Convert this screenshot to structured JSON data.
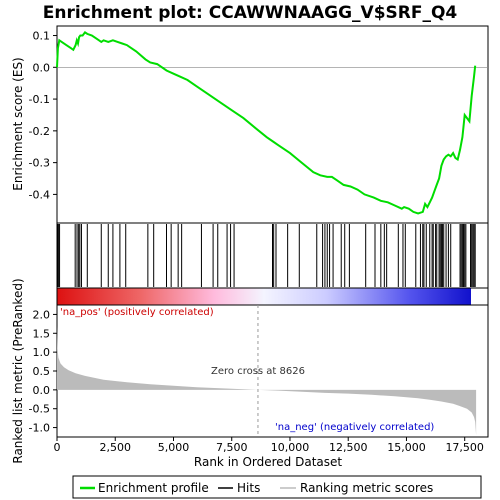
{
  "title": "Enrichment plot: CCAWWNAAGG_V$SRF_Q4",
  "colors": {
    "enrichment_line": "#00dd00",
    "hits": "#000000",
    "metric_fill": "#bbbbbb",
    "pos_text": "#cc0000",
    "neg_text": "#0000cc"
  },
  "chart_data": [
    {
      "type": "line",
      "name": "enrichment-score",
      "ylabel": "Enrichment score (ES)",
      "xlim": [
        0,
        18500
      ],
      "ylim": [
        -0.49,
        0.13
      ],
      "yticks": [
        0.1,
        0.0,
        -0.1,
        -0.2,
        -0.3,
        -0.4
      ],
      "ytick_labels": [
        "0.1",
        "0.0",
        "-0.1",
        "-0.2",
        "-0.3",
        "-0.4"
      ],
      "grid": false,
      "x": [
        0,
        40,
        100,
        200,
        400,
        600,
        700,
        800,
        850,
        900,
        950,
        1000,
        1100,
        1200,
        1300,
        1500,
        1700,
        1900,
        2000,
        2200,
        2400,
        2600,
        2800,
        3000,
        3400,
        3800,
        4000,
        4300,
        4700,
        5000,
        5300,
        5600,
        6000,
        6500,
        7000,
        7500,
        8000,
        8500,
        9000,
        9300,
        9500,
        10000,
        10500,
        11000,
        11300,
        11600,
        11800,
        12000,
        12300,
        12600,
        12900,
        13200,
        13600,
        13900,
        14200,
        14500,
        14800,
        14900,
        15100,
        15300,
        15500,
        15700,
        15800,
        15900,
        16000,
        16100,
        16200,
        16300,
        16400,
        16500,
        16600,
        16700,
        16800,
        16900,
        17000,
        17100,
        17200,
        17300,
        17400,
        17500,
        17600,
        17700,
        17800,
        17900,
        17950
      ],
      "y": [
        0.0,
        0.06,
        0.085,
        0.08,
        0.07,
        0.06,
        0.055,
        0.07,
        0.085,
        0.075,
        0.095,
        0.1,
        0.1,
        0.11,
        0.105,
        0.1,
        0.09,
        0.08,
        0.085,
        0.08,
        0.085,
        0.08,
        0.075,
        0.07,
        0.05,
        0.025,
        0.015,
        0.01,
        -0.01,
        -0.02,
        -0.03,
        -0.04,
        -0.06,
        -0.085,
        -0.11,
        -0.135,
        -0.16,
        -0.19,
        -0.22,
        -0.235,
        -0.245,
        -0.27,
        -0.3,
        -0.33,
        -0.34,
        -0.345,
        -0.345,
        -0.355,
        -0.37,
        -0.375,
        -0.385,
        -0.4,
        -0.41,
        -0.42,
        -0.425,
        -0.435,
        -0.445,
        -0.44,
        -0.445,
        -0.455,
        -0.46,
        -0.455,
        -0.43,
        -0.44,
        -0.425,
        -0.41,
        -0.39,
        -0.37,
        -0.35,
        -0.31,
        -0.29,
        -0.28,
        -0.275,
        -0.28,
        -0.27,
        -0.285,
        -0.29,
        -0.26,
        -0.22,
        -0.15,
        -0.16,
        -0.17,
        -0.09,
        -0.03,
        0.005
      ]
    },
    {
      "type": "hits",
      "name": "gene-set-hits",
      "x": [
        30,
        60,
        110,
        780,
        860,
        930,
        980,
        1050,
        1300,
        1900,
        2200,
        2400,
        2700,
        2950,
        3900,
        4150,
        4700,
        4900,
        5200,
        5350,
        6200,
        6700,
        6900,
        7300,
        7450,
        7600,
        9250,
        9300,
        9400,
        9900,
        10400,
        11150,
        11400,
        11500,
        11600,
        11700,
        11850,
        12200,
        12350,
        12550,
        13250,
        13650,
        13900,
        14050,
        14150,
        14650,
        14850,
        14950,
        15400,
        15600,
        15700,
        15750,
        15850,
        16000,
        16100,
        16150,
        16250,
        16300,
        16400,
        16450,
        16500,
        16550,
        16600,
        16700,
        16800,
        16900,
        17300,
        17350,
        17400,
        17450,
        17500,
        17550,
        17750,
        17800,
        17850,
        17900,
        17950
      ]
    },
    {
      "type": "area",
      "name": "ranked-list-metric",
      "ylabel": "Ranked list metric (PreRanked)",
      "xlabel": "Rank in Ordered Dataset",
      "xlim": [
        0,
        18500
      ],
      "ylim": [
        -1.25,
        2.25
      ],
      "xticks": [
        0,
        2500,
        5000,
        7500,
        10000,
        12500,
        15000,
        17500
      ],
      "xtick_labels": [
        "0",
        "2,500",
        "5,000",
        "7,500",
        "10,000",
        "12,500",
        "15,000",
        "17,500"
      ],
      "yticks": [
        2.0,
        1.5,
        1.0,
        0.5,
        0.0,
        -0.5,
        -1.0
      ],
      "ytick_labels": [
        "2.0",
        "1.5",
        "1.0",
        "0.5",
        "0.0",
        "-0.5",
        "-1.0"
      ],
      "x": [
        0,
        20,
        60,
        150,
        300,
        500,
        800,
        1200,
        2000,
        3000,
        4000,
        5000,
        6000,
        7000,
        8000,
        8626,
        9500,
        10500,
        11500,
        12500,
        13500,
        14500,
        15500,
        16000,
        16500,
        17000,
        17300,
        17600,
        17800,
        17900,
        17950,
        17990
      ],
      "y": [
        1.7,
        1.1,
        0.85,
        0.7,
        0.6,
        0.52,
        0.44,
        0.37,
        0.27,
        0.2,
        0.15,
        0.11,
        0.07,
        0.04,
        0.015,
        0.0,
        -0.02,
        -0.05,
        -0.08,
        -0.1,
        -0.13,
        -0.17,
        -0.22,
        -0.26,
        -0.31,
        -0.37,
        -0.43,
        -0.5,
        -0.6,
        -0.72,
        -0.85,
        -1.2
      ]
    }
  ],
  "annotations": {
    "pos_label": "'na_pos' (positively correlated)",
    "neg_label": "'na_neg' (negatively correlated)",
    "zero_cross": "Zero cross at 8626",
    "zero_cross_x": 8626
  },
  "legend": {
    "items": [
      {
        "label": "Enrichment profile",
        "icon": "green-line-icon"
      },
      {
        "label": "Hits",
        "icon": "black-line-icon"
      },
      {
        "label": "Ranking metric scores",
        "icon": "gray-line-icon"
      }
    ]
  }
}
